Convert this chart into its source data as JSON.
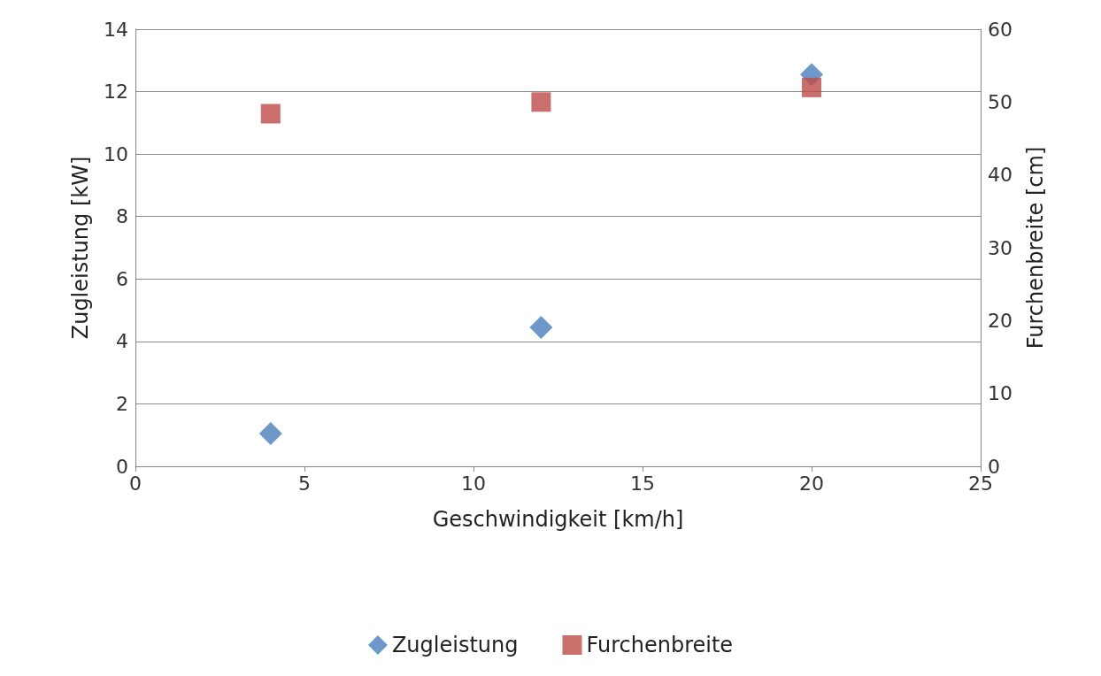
{
  "chart_data": {
    "type": "scatter",
    "xlabel": "Geschwindigkeit [km/h]",
    "ylabel": "Zugleistung [kW]",
    "y2label": "Furchenbreite [cm]",
    "xlim": [
      0,
      25
    ],
    "xticks": [
      0,
      5,
      10,
      15,
      20,
      25
    ],
    "ylim": [
      0,
      14
    ],
    "yticks": [
      0,
      2,
      4,
      6,
      8,
      10,
      12,
      14
    ],
    "y2lim": [
      0,
      60
    ],
    "y2ticks": [
      0,
      10,
      20,
      30,
      40,
      50,
      60
    ],
    "grid": "y",
    "legend": "bottom",
    "series": [
      {
        "name": "Zugleistung",
        "color": "#4a7ebb",
        "marker": "diamond",
        "x": [
          4,
          12,
          20
        ],
        "values": [
          1.05,
          4.45,
          12.55
        ]
      },
      {
        "name": "Furchenbreite",
        "color": "#be4b48",
        "marker": "square",
        "axis": "y2",
        "x": [
          4,
          12,
          20
        ],
        "values": [
          48.4,
          50,
          52
        ]
      }
    ]
  }
}
